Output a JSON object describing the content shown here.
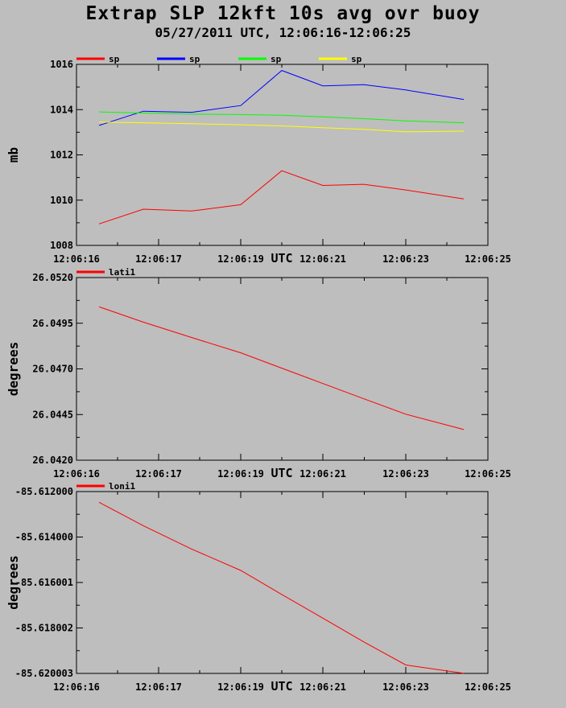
{
  "header": {
    "title": "Extrap SLP 12kft 10s avg ovr buoy",
    "subtitle": "05/27/2011  UTC, 12:06:16-12:06:25"
  },
  "chart_data": [
    {
      "type": "line",
      "xlabel": "UTC",
      "ylabel": "mb",
      "xticks": [
        "12:06:16",
        "12:06:17",
        "12:06:19",
        "12:06:21",
        "12:06:23",
        "12:06:25"
      ],
      "yticks": [
        "1008",
        "1010",
        "1012",
        "1014",
        "1016"
      ],
      "ylim": [
        1008,
        1016
      ],
      "legend_position": "top-left",
      "series": [
        {
          "name": "sp",
          "color": "#ff0000",
          "values": [
            1008.95,
            1009.6,
            1009.52,
            1009.8,
            1011.3,
            1010.65,
            1010.7,
            1010.45,
            1010.05
          ]
        },
        {
          "name": "sp",
          "color": "#0000ff",
          "values": [
            1013.3,
            1013.93,
            1013.88,
            1014.18,
            1015.73,
            1015.05,
            1015.1,
            1014.87,
            1014.45
          ]
        },
        {
          "name": "sp",
          "color": "#00ff00",
          "values": [
            1013.9,
            1013.85,
            1013.8,
            1013.78,
            1013.75,
            1013.68,
            1013.6,
            1013.5,
            1013.42
          ]
        },
        {
          "name": "sp",
          "color": "#ffff00",
          "values": [
            1013.45,
            1013.42,
            1013.38,
            1013.33,
            1013.28,
            1013.2,
            1013.13,
            1013.02,
            1013.05
          ]
        }
      ]
    },
    {
      "type": "line",
      "xlabel": "UTC",
      "ylabel": "degrees",
      "xticks": [
        "12:06:16",
        "12:06:17",
        "12:06:19",
        "12:06:21",
        "12:06:23",
        "12:06:25"
      ],
      "yticks": [
        "26.0420",
        "26.0445",
        "26.0470",
        "26.0495",
        "26.0520"
      ],
      "ylim": [
        26.042,
        26.052
      ],
      "legend_position": "top-left",
      "series": [
        {
          "name": "lati1",
          "color": "#ff0000",
          "values": [
            26.0504,
            26.04956,
            26.04872,
            26.04788,
            26.04704,
            26.0462,
            26.04536,
            26.04452,
            26.04368
          ]
        }
      ]
    },
    {
      "type": "line",
      "xlabel": "UTC",
      "ylabel": "degrees",
      "xticks": [
        "12:06:16",
        "12:06:17",
        "12:06:19",
        "12:06:21",
        "12:06:23",
        "12:06:25"
      ],
      "yticks": [
        "-85.620003",
        "-85.618002",
        "-85.616001",
        "-85.614000",
        "-85.612000"
      ],
      "ylim": [
        -85.620003,
        -85.612
      ],
      "legend_position": "top-left",
      "series": [
        {
          "name": "loni1",
          "color": "#ff0000",
          "values": [
            -85.61247,
            -85.6135,
            -85.61453,
            -85.61547,
            -85.61653,
            -85.61757,
            -85.61862,
            -85.61963,
            -85.62
          ]
        }
      ]
    }
  ]
}
